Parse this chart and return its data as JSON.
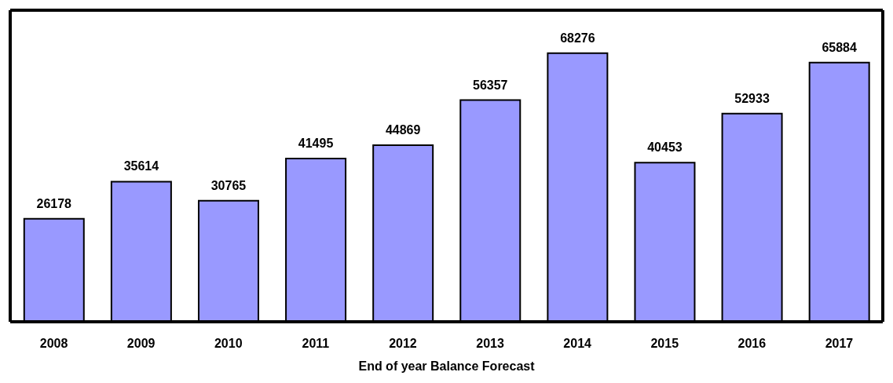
{
  "chart_data": {
    "type": "bar",
    "xlabel": "End of year Balance Forecast",
    "categories": [
      "2008",
      "2009",
      "2010",
      "2011",
      "2012",
      "2013",
      "2014",
      "2015",
      "2016",
      "2017"
    ],
    "values": [
      26178,
      35614,
      30765,
      41495,
      44869,
      56357,
      68276,
      40453,
      52933,
      65884
    ],
    "color": "#9999ff",
    "data_labels": true,
    "tick_labels": "x"
  }
}
